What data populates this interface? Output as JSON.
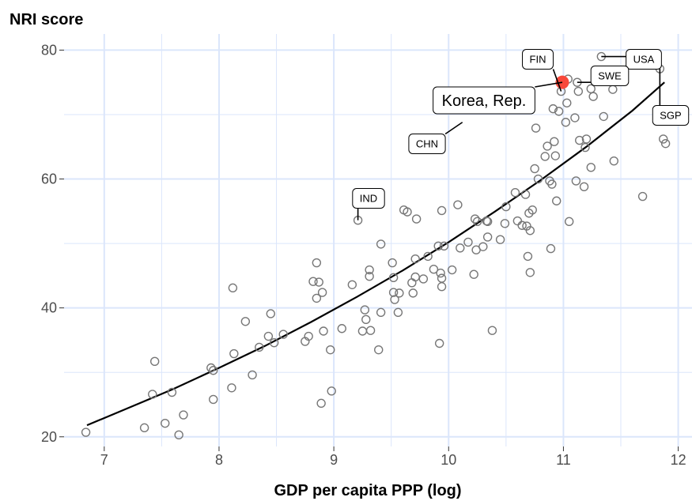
{
  "chart_data": {
    "type": "scatter",
    "title": "",
    "ylabel": "NRI score",
    "xlabel": "GDP per capita PPP (log)",
    "xlim": [
      6.65,
      12.12
    ],
    "ylim": [
      18.5,
      82.5
    ],
    "x_ticks": [
      7,
      8,
      9,
      10,
      11,
      12
    ],
    "y_ticks": [
      20,
      40,
      60,
      80
    ],
    "grid": true,
    "colors": {
      "grid": "#dbe6fb",
      "highlight": "#f8483b",
      "points": "#777777",
      "curve": "#000000"
    },
    "trend_curve": {
      "x": [
        6.85,
        7.2,
        7.6,
        8.0,
        8.4,
        8.8,
        9.2,
        9.6,
        10.0,
        10.4,
        10.8,
        11.2,
        11.6,
        11.88
      ],
      "y": [
        21.8,
        24.4,
        27.4,
        30.7,
        34.1,
        37.8,
        41.7,
        45.8,
        50.2,
        54.9,
        59.8,
        65.0,
        70.6,
        75.0
      ]
    },
    "points": [
      {
        "x": 6.84,
        "y": 20.7
      },
      {
        "x": 7.35,
        "y": 21.4
      },
      {
        "x": 7.42,
        "y": 26.6
      },
      {
        "x": 7.44,
        "y": 31.7
      },
      {
        "x": 7.53,
        "y": 22.1
      },
      {
        "x": 7.59,
        "y": 26.9
      },
      {
        "x": 7.65,
        "y": 20.3
      },
      {
        "x": 7.69,
        "y": 23.4
      },
      {
        "x": 7.93,
        "y": 30.7
      },
      {
        "x": 7.95,
        "y": 30.3
      },
      {
        "x": 7.95,
        "y": 25.8
      },
      {
        "x": 8.11,
        "y": 27.6
      },
      {
        "x": 8.12,
        "y": 43.1
      },
      {
        "x": 8.13,
        "y": 32.9
      },
      {
        "x": 8.23,
        "y": 37.9
      },
      {
        "x": 8.29,
        "y": 29.6
      },
      {
        "x": 8.35,
        "y": 33.9
      },
      {
        "x": 8.43,
        "y": 35.6
      },
      {
        "x": 8.45,
        "y": 39.1
      },
      {
        "x": 8.48,
        "y": 34.6
      },
      {
        "x": 8.56,
        "y": 35.9
      },
      {
        "x": 8.75,
        "y": 34.8
      },
      {
        "x": 8.78,
        "y": 35.6
      },
      {
        "x": 8.82,
        "y": 44.1
      },
      {
        "x": 8.85,
        "y": 47.0
      },
      {
        "x": 8.85,
        "y": 41.5
      },
      {
        "x": 8.87,
        "y": 44.0
      },
      {
        "x": 8.89,
        "y": 25.2
      },
      {
        "x": 8.9,
        "y": 42.4
      },
      {
        "x": 8.91,
        "y": 36.4
      },
      {
        "x": 8.97,
        "y": 33.5
      },
      {
        "x": 8.98,
        "y": 27.1
      },
      {
        "x": 9.07,
        "y": 36.8
      },
      {
        "x": 9.16,
        "y": 43.6
      },
      {
        "x": 9.21,
        "y": 53.6
      },
      {
        "x": 9.25,
        "y": 36.4
      },
      {
        "x": 9.27,
        "y": 39.7
      },
      {
        "x": 9.28,
        "y": 38.2
      },
      {
        "x": 9.31,
        "y": 45.9
      },
      {
        "x": 9.31,
        "y": 44.9
      },
      {
        "x": 9.32,
        "y": 36.5
      },
      {
        "x": 9.39,
        "y": 33.5
      },
      {
        "x": 9.41,
        "y": 49.9
      },
      {
        "x": 9.41,
        "y": 39.3
      },
      {
        "x": 9.51,
        "y": 47.0
      },
      {
        "x": 9.52,
        "y": 44.7
      },
      {
        "x": 9.52,
        "y": 42.4
      },
      {
        "x": 9.53,
        "y": 41.3
      },
      {
        "x": 9.56,
        "y": 39.3
      },
      {
        "x": 9.57,
        "y": 42.3
      },
      {
        "x": 9.61,
        "y": 55.2
      },
      {
        "x": 9.64,
        "y": 54.9
      },
      {
        "x": 9.68,
        "y": 43.9
      },
      {
        "x": 9.69,
        "y": 42.3
      },
      {
        "x": 9.71,
        "y": 44.8
      },
      {
        "x": 9.71,
        "y": 47.6
      },
      {
        "x": 9.72,
        "y": 53.8
      },
      {
        "x": 9.78,
        "y": 44.5
      },
      {
        "x": 9.82,
        "y": 48.0
      },
      {
        "x": 9.87,
        "y": 46.0
      },
      {
        "x": 9.91,
        "y": 49.6
      },
      {
        "x": 9.92,
        "y": 34.5
      },
      {
        "x": 9.93,
        "y": 45.4
      },
      {
        "x": 9.94,
        "y": 55.1
      },
      {
        "x": 9.94,
        "y": 44.6
      },
      {
        "x": 9.94,
        "y": 43.3
      },
      {
        "x": 9.96,
        "y": 49.6
      },
      {
        "x": 10.03,
        "y": 45.9
      },
      {
        "x": 10.08,
        "y": 56.0
      },
      {
        "x": 10.1,
        "y": 49.3
      },
      {
        "x": 10.17,
        "y": 50.2
      },
      {
        "x": 10.22,
        "y": 45.2
      },
      {
        "x": 10.23,
        "y": 53.8
      },
      {
        "x": 10.24,
        "y": 49.0
      },
      {
        "x": 10.25,
        "y": 53.4
      },
      {
        "x": 10.3,
        "y": 49.5
      },
      {
        "x": 10.33,
        "y": 53.5
      },
      {
        "x": 10.34,
        "y": 53.4
      },
      {
        "x": 10.34,
        "y": 51.0
      },
      {
        "x": 10.38,
        "y": 36.5
      },
      {
        "x": 10.45,
        "y": 50.6
      },
      {
        "x": 10.49,
        "y": 53.1
      },
      {
        "x": 10.5,
        "y": 55.7
      },
      {
        "x": 10.58,
        "y": 57.9
      },
      {
        "x": 10.6,
        "y": 53.5
      },
      {
        "x": 10.64,
        "y": 52.8
      },
      {
        "x": 10.67,
        "y": 57.6
      },
      {
        "x": 10.68,
        "y": 52.7
      },
      {
        "x": 10.69,
        "y": 48.0
      },
      {
        "x": 10.7,
        "y": 54.7
      },
      {
        "x": 10.71,
        "y": 45.5
      },
      {
        "x": 10.71,
        "y": 52.0
      },
      {
        "x": 10.73,
        "y": 55.2
      },
      {
        "x": 10.75,
        "y": 61.6
      },
      {
        "x": 10.76,
        "y": 67.9
      },
      {
        "x": 10.78,
        "y": 60.0
      },
      {
        "x": 10.84,
        "y": 63.5
      },
      {
        "x": 10.86,
        "y": 65.1
      },
      {
        "x": 10.88,
        "y": 59.7
      },
      {
        "x": 10.89,
        "y": 49.2
      },
      {
        "x": 10.9,
        "y": 59.2
      },
      {
        "x": 10.91,
        "y": 70.9
      },
      {
        "x": 10.92,
        "y": 65.8
      },
      {
        "x": 10.93,
        "y": 63.6
      },
      {
        "x": 10.94,
        "y": 56.6
      },
      {
        "x": 10.96,
        "y": 70.5
      },
      {
        "x": 10.98,
        "y": 73.6
      },
      {
        "x": 11.02,
        "y": 68.8
      },
      {
        "x": 11.03,
        "y": 71.8
      },
      {
        "x": 11.04,
        "y": 75.5
      },
      {
        "x": 11.05,
        "y": 53.4
      },
      {
        "x": 11.1,
        "y": 69.5
      },
      {
        "x": 11.11,
        "y": 59.7
      },
      {
        "x": 11.12,
        "y": 75.0
      },
      {
        "x": 11.13,
        "y": 73.6
      },
      {
        "x": 11.14,
        "y": 66.0
      },
      {
        "x": 11.18,
        "y": 58.8
      },
      {
        "x": 11.19,
        "y": 64.9
      },
      {
        "x": 11.2,
        "y": 66.2
      },
      {
        "x": 11.24,
        "y": 74.0
      },
      {
        "x": 11.24,
        "y": 61.8
      },
      {
        "x": 11.26,
        "y": 72.8
      },
      {
        "x": 11.33,
        "y": 79.0
      },
      {
        "x": 11.35,
        "y": 69.7
      },
      {
        "x": 11.43,
        "y": 73.9
      },
      {
        "x": 11.44,
        "y": 62.8
      },
      {
        "x": 11.69,
        "y": 57.3
      },
      {
        "x": 11.84,
        "y": 77.1
      },
      {
        "x": 11.87,
        "y": 66.2
      },
      {
        "x": 11.89,
        "y": 65.5
      }
    ],
    "highlight": {
      "x": 10.99,
      "y": 75.0
    },
    "annotations": [
      {
        "label": "FIN",
        "x": 10.98,
        "y": 73.6,
        "size": "small"
      },
      {
        "label": "USA",
        "x": 11.33,
        "y": 79.0,
        "size": "small"
      },
      {
        "label": "SWE",
        "x": 11.12,
        "y": 75.0,
        "size": "small"
      },
      {
        "label": "SGP",
        "x": 11.84,
        "y": 77.1,
        "size": "small"
      },
      {
        "label": "Korea, Rep.",
        "x": 10.99,
        "y": 75.0,
        "size": "large"
      },
      {
        "label": "CHN",
        "x": 10.12,
        "y": 68.8,
        "size": "small"
      },
      {
        "label": "IND",
        "x": 9.21,
        "y": 53.6,
        "size": "small"
      }
    ]
  }
}
